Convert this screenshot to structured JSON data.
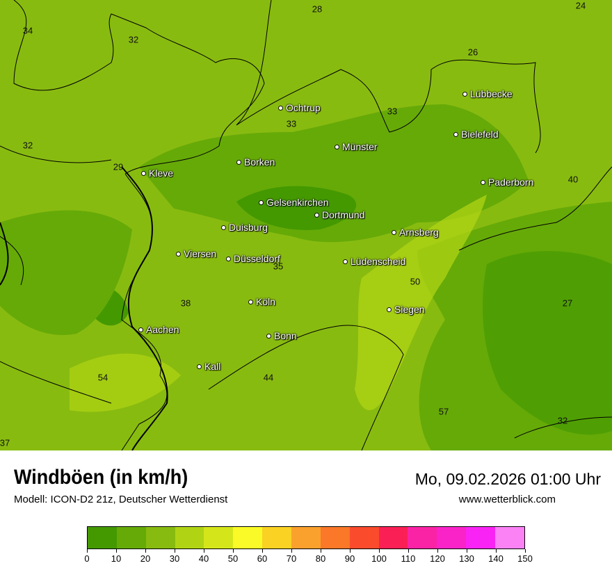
{
  "header": {
    "title": "Windböen (in km/h)",
    "subtitle": "Modell: ICON-D2 21z, Deutscher Wetterdienst",
    "datetime": "Mo, 09.02.2026 01:00 Uhr",
    "website": "www.wetterblick.com"
  },
  "map": {
    "cities": [
      "Ochtrup",
      "Lübbecke",
      "Bielefeld",
      "Münster",
      "Borken",
      "Kleve",
      "Paderborn",
      "Gelsenkirchen",
      "Dortmund",
      "Duisburg",
      "Arnsberg",
      "Viersen",
      "Düsseldorf",
      "Lüdenscheid",
      "Köln",
      "Siegen",
      "Aachen",
      "Bonn",
      "Kall"
    ],
    "values": [
      "28",
      "24",
      "34",
      "32",
      "26",
      "33",
      "33",
      "32",
      "29",
      "40",
      "35",
      "50",
      "38",
      "27",
      "54",
      "44",
      "57",
      "32",
      "37"
    ]
  },
  "legend": {
    "colors": [
      "#449900",
      "#66aa08",
      "#88bb10",
      "#b0d414",
      "#d4e61a",
      "#fafa28",
      "#fad223",
      "#faa02d",
      "#fa7828",
      "#fa4b2d",
      "#fa2055",
      "#fa23a5",
      "#fa23c8",
      "#fa23f5",
      "#fa82f5"
    ],
    "ticks": [
      "0",
      "10",
      "20",
      "30",
      "40",
      "50",
      "60",
      "70",
      "80",
      "90",
      "100",
      "110",
      "120",
      "130",
      "140",
      "150"
    ]
  }
}
